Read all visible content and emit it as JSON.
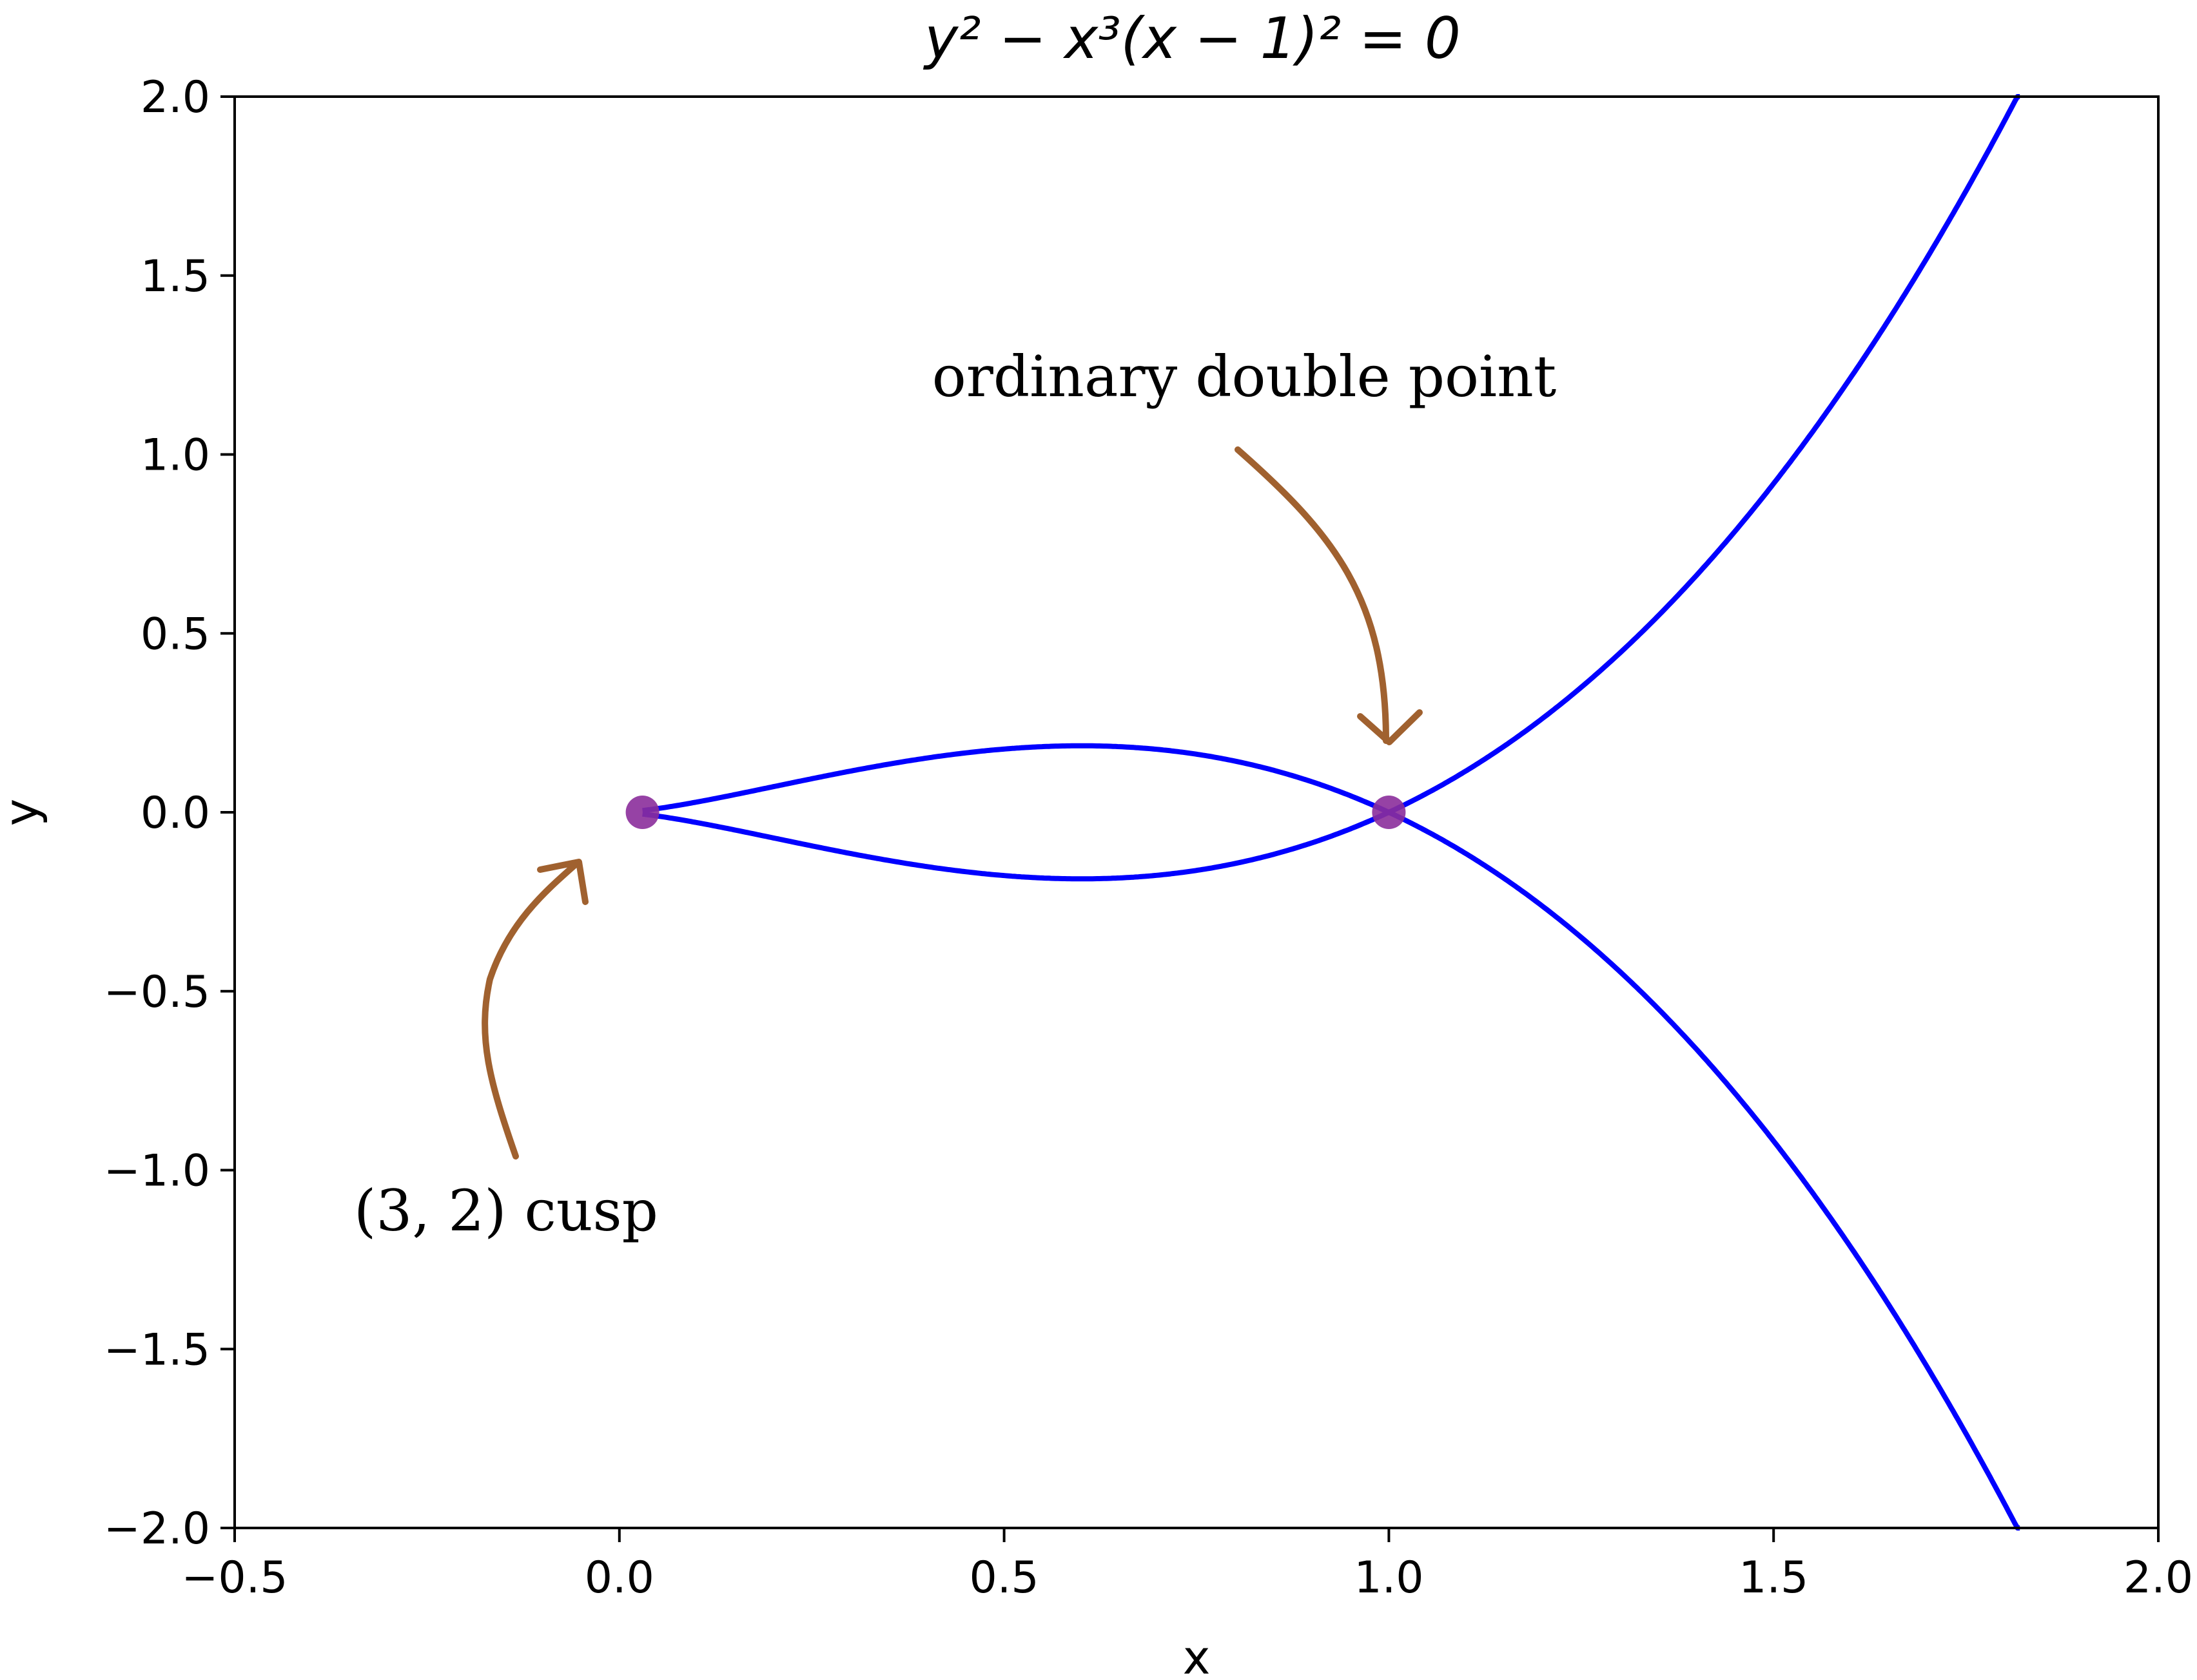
{
  "chart_data": {
    "type": "line",
    "title": "y² − x³(x − 1)² = 0",
    "xlabel": "x",
    "ylabel": "y",
    "xlim": [
      -0.5,
      2.0
    ],
    "ylim": [
      -2.0,
      2.0
    ],
    "xticks": [
      "−0.5",
      "0.0",
      "0.5",
      "1.0",
      "1.5",
      "2.0"
    ],
    "yticks": [
      "2.0",
      "1.5",
      "1.0",
      "0.5",
      "0.0",
      "−0.5",
      "−1.0",
      "−1.5",
      "−2.0"
    ],
    "grid": false,
    "curve": {
      "equation": "y^2 = x^3 (x - 1)^2",
      "color": "#0000ff",
      "x_start": 0.03,
      "x_end": 1.82
    },
    "points": [
      {
        "x": 0.03,
        "y": 0.0,
        "color": "#8b2d9b"
      },
      {
        "x": 1.0,
        "y": 0.0,
        "color": "#8b2d9b"
      }
    ],
    "annotations": [
      {
        "text": "ordinary double point",
        "point": [
          1.0,
          0.0
        ],
        "text_pos": [
          1.0,
          1.23
        ],
        "arrow_color": "#a0612f"
      },
      {
        "text": "(3, 2) cusp",
        "point": [
          0.03,
          0.0
        ],
        "text_pos": [
          -0.05,
          -1.12
        ],
        "arrow_color": "#a0612f"
      }
    ]
  }
}
